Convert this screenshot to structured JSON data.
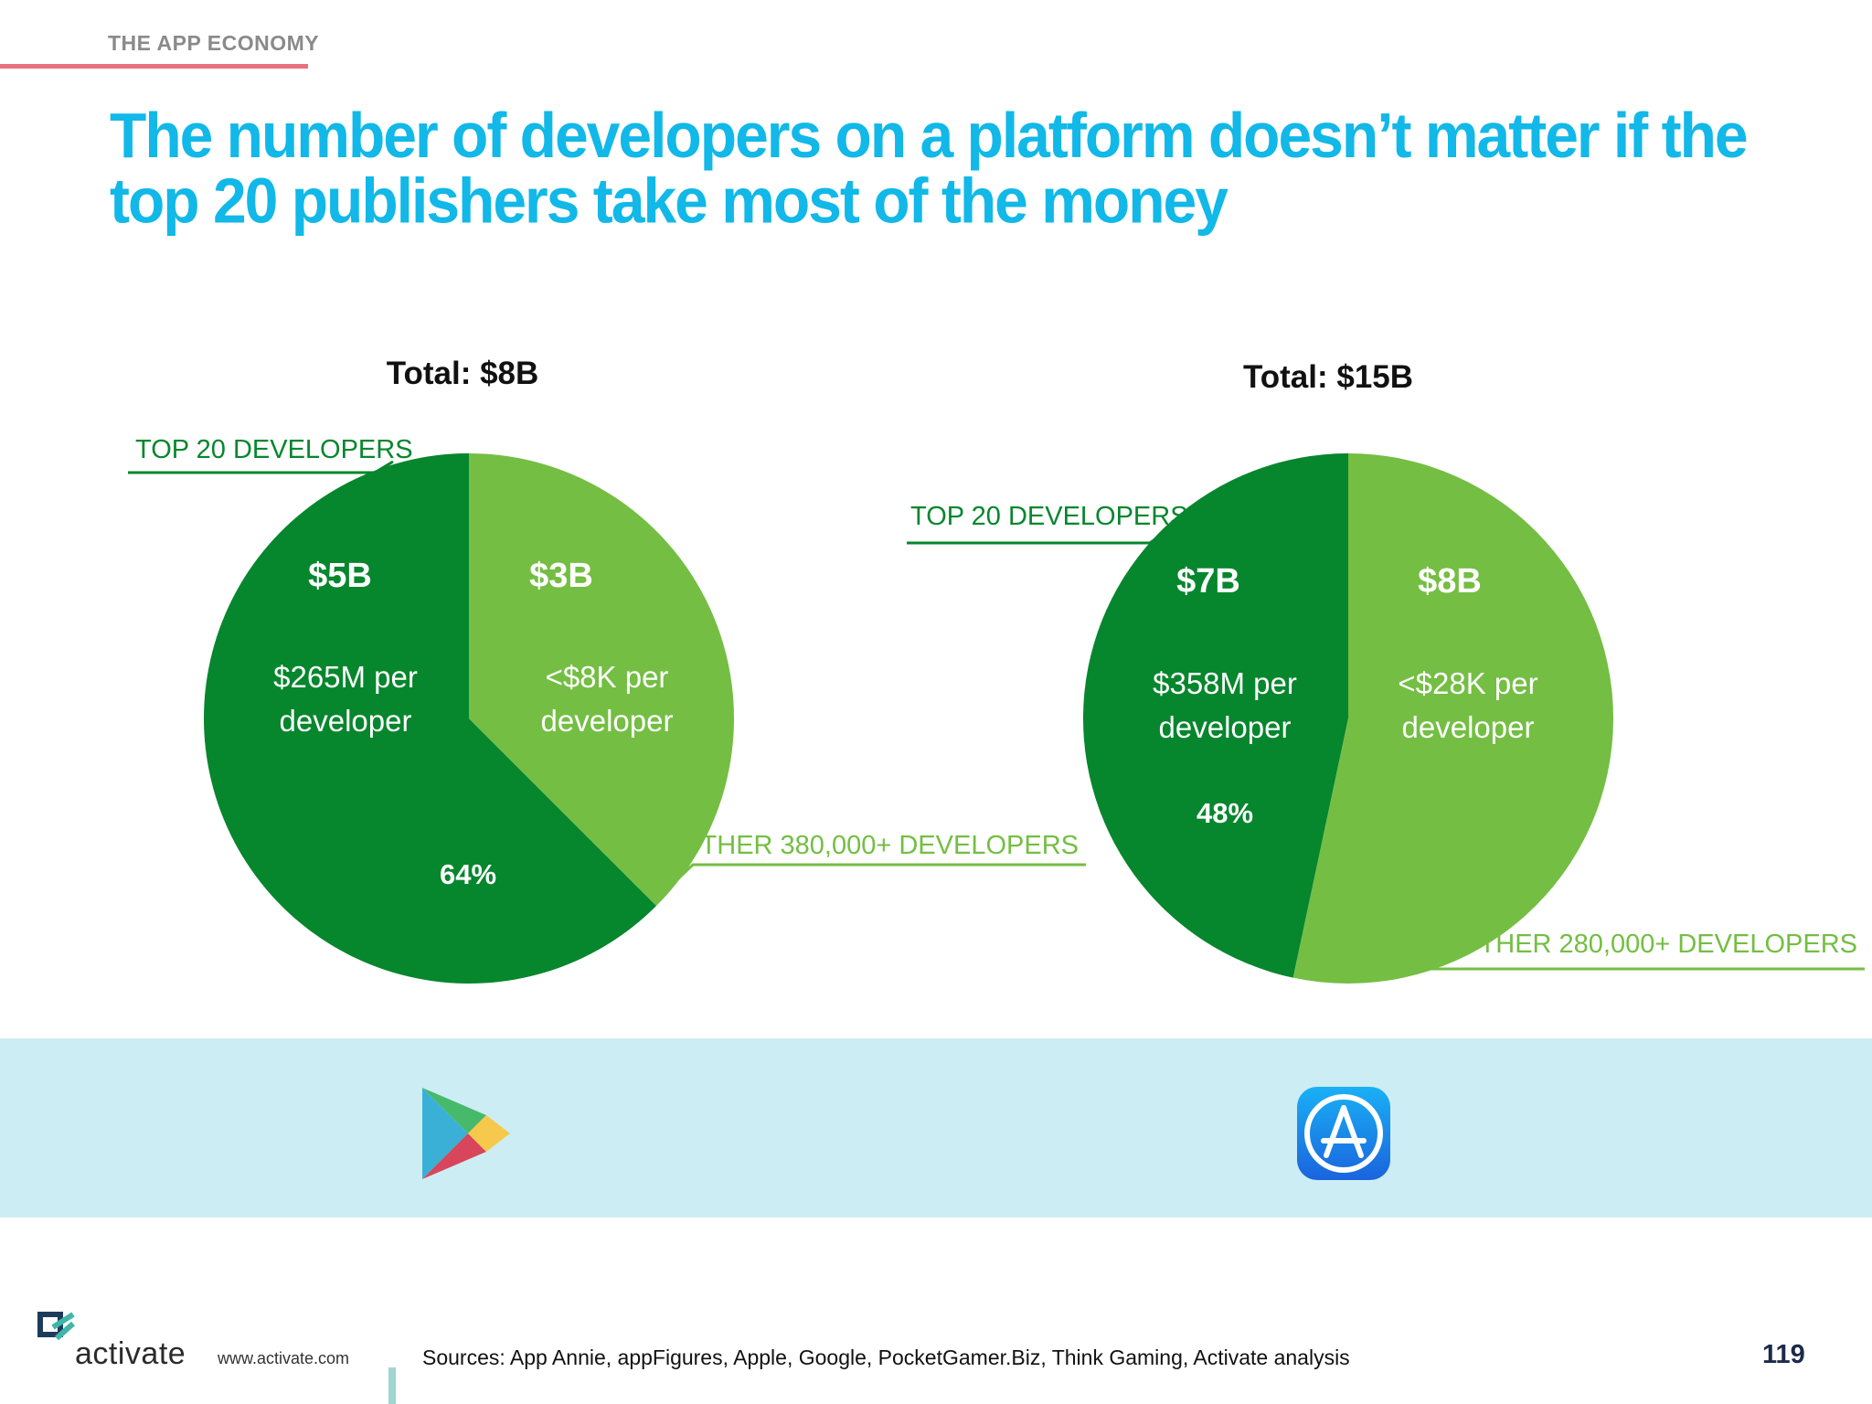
{
  "header": {
    "section": "THE APP ECONOMY",
    "title": "The number of developers on a platform doesn’t matter if the top 20 publishers take most of the money"
  },
  "colors": {
    "dark_green": "#06862d",
    "light_green": "#74be43",
    "title_blue": "#11b8e8",
    "band": "#cdedf4",
    "accent_rule": "#e8717f"
  },
  "chart_data": [
    {
      "type": "pie",
      "title": "Total: $8B",
      "store_icon": "google-play-icon",
      "slices": [
        {
          "label": "TOP 20 DEVELOPERS",
          "value": 5,
          "value_label": "$5B",
          "per_developer": [
            "$265M per",
            "developer"
          ],
          "percent_label": "64%",
          "color": "#06862d"
        },
        {
          "label": "OTHER 380,000+ DEVELOPERS",
          "value": 3,
          "value_label": "$3B",
          "per_developer": [
            "<$8K per",
            "developer"
          ],
          "percent_label": "",
          "color": "#74be43"
        }
      ]
    },
    {
      "type": "pie",
      "title": "Total: $15B",
      "store_icon": "app-store-icon",
      "slices": [
        {
          "label": "TOP 20 DEVELOPERS",
          "value": 7,
          "value_label": "$7B",
          "per_developer": [
            "$358M per",
            "developer"
          ],
          "percent_label": "48%",
          "color": "#06862d"
        },
        {
          "label": "OTHER 280,000+ DEVELOPERS",
          "value": 8,
          "value_label": "$8B",
          "per_developer": [
            "<$28K per",
            "developer"
          ],
          "percent_label": "",
          "color": "#74be43"
        }
      ]
    }
  ],
  "footer": {
    "brand": "activate",
    "url": "www.activate.com",
    "sources": "Sources: App Annie, appFigures, Apple, Google, PocketGamer.Biz, Think Gaming, Activate analysis",
    "page_number": "119"
  }
}
